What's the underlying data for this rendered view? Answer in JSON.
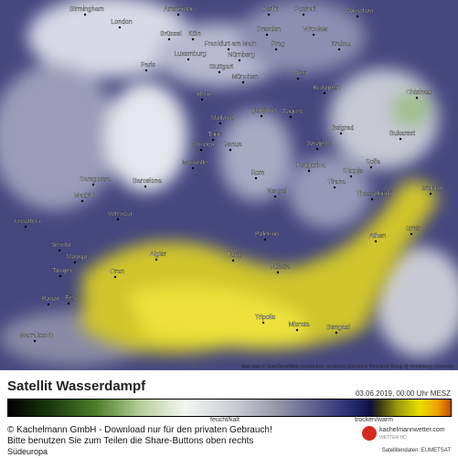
{
  "map": {
    "cities": [
      "Birmingham",
      "Amsterdam",
      "Berlin",
      "Poznań",
      "Warschau",
      "London",
      "Brüssel",
      "Köln",
      "Dresden",
      "Wrocław",
      "Frankfurt am Main",
      "Luxemburg",
      "Prag",
      "Krakau",
      "Nürnberg",
      "Paris",
      "Stuttgart",
      "München",
      "Wien",
      "Budapest",
      "Chisinau",
      "Bern",
      "Ljubljana",
      "Zagreb",
      "Mailand",
      "Turin",
      "Belgrad",
      "Bukarest",
      "Monaco",
      "Genua",
      "Sarajevo",
      "Marseille",
      "Podgorica",
      "Sofia",
      "Skopje",
      "Saragossa",
      "Barcelona",
      "Rom",
      "Tirana",
      "Istanbul",
      "Madrid",
      "Thessaloniki",
      "Neapel",
      "Valencia",
      "Lissabon",
      "Izmir",
      "Palermo",
      "Athen",
      "Sevilla",
      "Malaga",
      "Algier",
      "Tunis",
      "Tanger",
      "Oran",
      "Valletta",
      "Rabat",
      "Fès",
      "Tripolis",
      "Misrata",
      "Bengasi",
      "Marrakesch"
    ],
    "attribution": "Map data © OpenStreetMap contributors, rendering GIScience Research Group @ Heidelberg University"
  },
  "header": {
    "title": "Satellit Wasserdampf",
    "date": "03.06.2019, 00:00 Uhr MESZ"
  },
  "legend": {
    "left": "feucht/kalt",
    "right": "trocken/warm"
  },
  "footer": {
    "copyright": "© Kachelmann GmbH - Download nur für den privaten Gebrauch!",
    "share": "Bitte benutzen Sie zum Teilen die Share-Buttons oben rechts",
    "region": "Südeuropa",
    "brand": "kachelmannwetter.com",
    "brand_sub": "WETTER HD",
    "source": "Satellitendaten: EUMETSAT"
  }
}
